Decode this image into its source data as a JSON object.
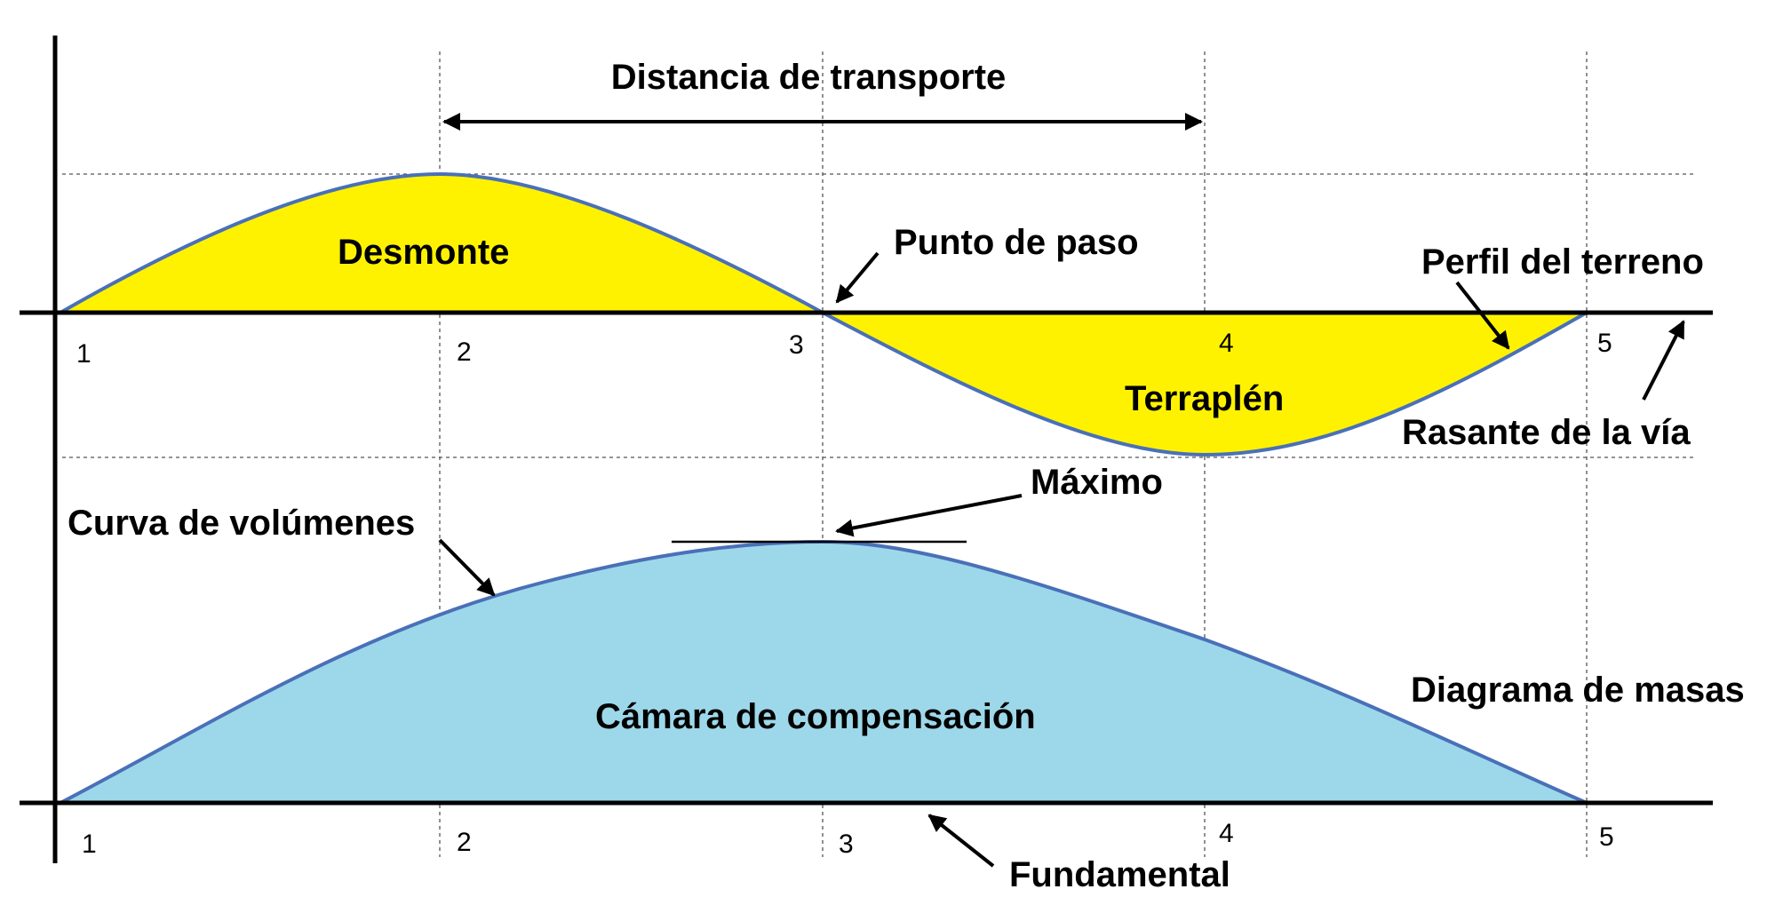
{
  "labels": {
    "haul_distance": "Distancia de transporte",
    "cut": "Desmonte",
    "passing_point": "Punto de paso",
    "terrain_profile": "Perfil del terreno",
    "fill": "Terraplén",
    "grade_line": "Rasante de la vía",
    "maximum": "Máximo",
    "volume_curve": "Curva de volúmenes",
    "compensation_chamber": "Cámara de compensación",
    "mass_diagram": "Diagrama de masas",
    "fundamental": "Fundamental"
  },
  "station_numbers": [
    "1",
    "2",
    "3",
    "4",
    "5"
  ],
  "colors": {
    "cut_fill": "#FFF200",
    "chamber_fill": "#9DD8EA",
    "curve_stroke": "#4A70B8",
    "axis": "#000000"
  }
}
